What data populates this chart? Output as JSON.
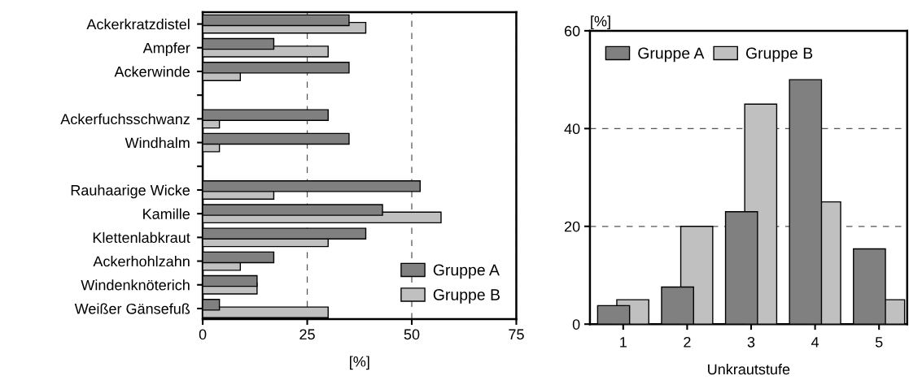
{
  "chart_data": [
    {
      "type": "bar",
      "orientation": "horizontal",
      "xlabel": "[%]",
      "categories": [
        "Ackerkratzdistel",
        "Ampfer",
        "Ackerwinde",
        null,
        "Ackerfuchsschwanz",
        "Windhalm",
        null,
        "Rauhaarige Wicke",
        "Kamille",
        "Klettenlabkraut",
        "Ackerhohlzahn",
        "Windenknöterich",
        "Weißer Gänsefuß"
      ],
      "series": [
        {
          "name": "Gruppe A",
          "color": "#808080",
          "values": [
            35,
            17,
            35,
            null,
            30,
            35,
            null,
            52,
            43,
            39,
            17,
            13,
            4
          ]
        },
        {
          "name": "Gruppe B",
          "color": "#c0c0c0",
          "values": [
            39,
            30,
            9,
            null,
            4,
            4,
            null,
            17,
            57,
            30,
            9,
            13,
            30
          ]
        }
      ],
      "xlim": [
        0,
        75
      ],
      "xticks": [
        0,
        25,
        50,
        75
      ],
      "grid": "x",
      "legend": "bottom right"
    },
    {
      "type": "bar",
      "xlabel": "Unkrautstufe",
      "ylabel": "[%]",
      "categories": [
        "1",
        "2",
        "3",
        "4",
        "5"
      ],
      "series": [
        {
          "name": "Gruppe A",
          "color": "#808080",
          "values": [
            3.8,
            7.6,
            23,
            50,
            15.4
          ]
        },
        {
          "name": "Gruppe B",
          "color": "#c0c0c0",
          "values": [
            5,
            20,
            45,
            25,
            5
          ]
        }
      ],
      "ylim": [
        0,
        60
      ],
      "yticks": [
        0,
        20,
        40,
        60
      ],
      "grid": "y",
      "legend": "top left"
    }
  ]
}
